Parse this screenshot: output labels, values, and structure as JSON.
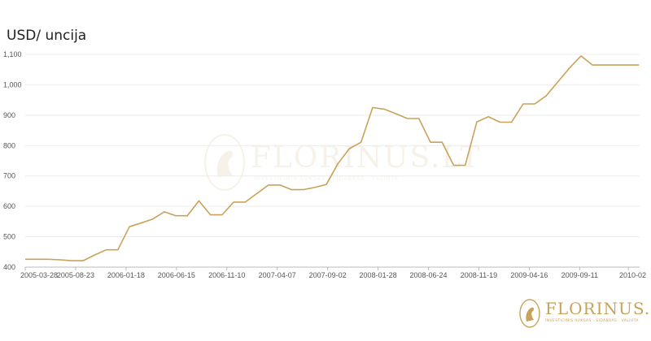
{
  "brand": {
    "name": "FLORINUS.LT",
    "tagline": "INVESTICINIS AUKSAS · SIDABRAS · VALIUTA",
    "color": "#c9a25a"
  },
  "chart_data": {
    "type": "line",
    "title": "USD/ uncija",
    "xlabel": "",
    "ylabel": "",
    "ylim": [
      400,
      1100
    ],
    "yticks": [
      400,
      500,
      600,
      700,
      800,
      900,
      1000,
      1100
    ],
    "ytick_labels": [
      "400",
      "500",
      "600",
      "700",
      "800",
      "900",
      "1,000",
      "1,100"
    ],
    "xticks": [
      "2005-03-28",
      "2005-08-23",
      "2006-01-18",
      "2006-06-15",
      "2006-11-10",
      "2007-04-07",
      "2007-09-02",
      "2008-01-28",
      "2008-06-24",
      "2008-11-19",
      "2009-04-16",
      "2009-09-11",
      "2010-02"
    ],
    "grid": true,
    "legend": "none",
    "line_color": "#c9a25a",
    "series": [
      {
        "x": [
          "2005-03-28",
          "2005-05-01",
          "2005-06-04",
          "2005-07-08",
          "2005-08-11",
          "2005-09-14",
          "2005-10-18",
          "2005-11-21",
          "2005-12-25",
          "2006-01-28",
          "2006-03-03",
          "2006-04-06",
          "2006-05-10",
          "2006-06-13",
          "2006-07-17",
          "2006-08-20",
          "2006-09-23",
          "2006-10-27",
          "2006-11-30",
          "2007-01-03",
          "2007-02-06",
          "2007-03-12",
          "2007-04-15",
          "2007-05-19",
          "2007-06-22",
          "2007-07-26",
          "2007-08-29",
          "2007-10-02",
          "2007-11-05",
          "2007-12-09",
          "2008-01-12",
          "2008-02-15",
          "2008-03-20",
          "2008-04-23",
          "2008-05-27",
          "2008-06-30",
          "2008-08-03",
          "2008-09-06",
          "2008-10-10",
          "2008-11-13",
          "2008-12-17",
          "2009-01-20",
          "2009-02-23",
          "2009-03-29",
          "2009-05-02",
          "2009-06-05",
          "2009-07-09",
          "2009-08-12",
          "2009-09-15",
          "2009-10-19",
          "2009-11-22",
          "2009-12-26",
          "2010-01-29",
          "2010-03-04"
        ],
        "y": [
          426,
          426,
          426,
          424,
          421,
          421,
          440,
          457,
          457,
          533,
          545,
          558,
          582,
          569,
          569,
          618,
          572,
          572,
          614,
          614,
          642,
          670,
          670,
          655,
          655,
          662,
          672,
          740,
          790,
          811,
          925,
          920,
          905,
          889,
          889,
          811,
          811,
          735,
          735,
          878,
          895,
          877,
          877,
          937,
          937,
          964,
          1010,
          1055,
          1095,
          1065,
          1065,
          1065,
          1065,
          1065
        ]
      }
    ]
  }
}
